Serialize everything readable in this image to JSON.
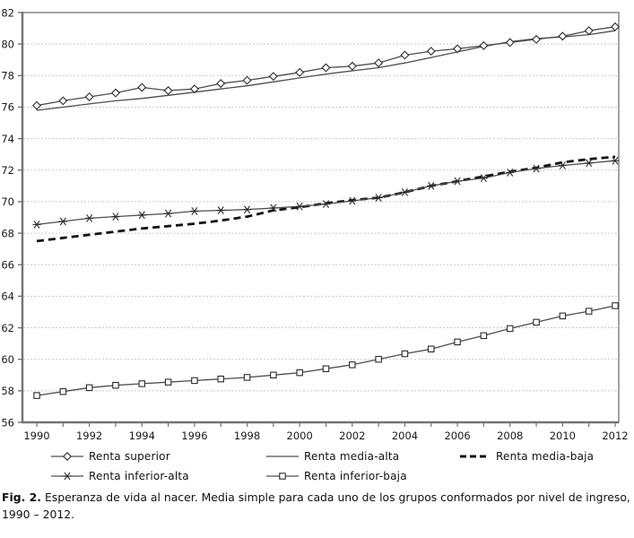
{
  "colors": {
    "axis": "#737373",
    "grid": "#c9c9c9",
    "line_gray": "#4d4d4d",
    "line_black": "#141414",
    "marker_stroke": "#2b2b2b",
    "marker_fill": "#ffffff",
    "text": "#1a1a1a"
  },
  "chart_data": {
    "type": "line",
    "title": "",
    "xlabel": "",
    "ylabel": "",
    "grid": "horizontal-dashed",
    "legend_position": "bottom",
    "ylim": [
      56,
      82
    ],
    "y_ticks": [
      56,
      58,
      60,
      62,
      64,
      66,
      68,
      70,
      72,
      74,
      76,
      78,
      80,
      82
    ],
    "x": [
      1990,
      1991,
      1992,
      1993,
      1994,
      1995,
      1996,
      1997,
      1998,
      1999,
      2000,
      2001,
      2002,
      2003,
      2004,
      2005,
      2006,
      2007,
      2008,
      2009,
      2010,
      2011,
      2012
    ],
    "x_tick_labels": [
      "1990",
      "1992",
      "1994",
      "1996",
      "1998",
      "2000",
      "2002",
      "2004",
      "2006",
      "2008",
      "2010",
      "2012"
    ],
    "series": [
      {
        "name": "Renta superior",
        "marker": "diamond",
        "line": "solid-thin",
        "values": [
          76.1,
          76.4,
          76.65,
          76.9,
          77.25,
          77.05,
          77.15,
          77.5,
          77.7,
          77.95,
          78.2,
          78.5,
          78.6,
          78.8,
          79.3,
          79.55,
          79.7,
          79.9,
          80.1,
          80.3,
          80.5,
          80.85,
          81.1
        ]
      },
      {
        "name": "Renta media-alta",
        "marker": "none",
        "line": "solid-thin",
        "values": [
          75.8,
          76.0,
          76.2,
          76.4,
          76.55,
          76.75,
          76.95,
          77.15,
          77.35,
          77.6,
          77.85,
          78.1,
          78.3,
          78.5,
          78.8,
          79.15,
          79.5,
          79.85,
          80.15,
          80.35,
          80.45,
          80.6,
          80.85
        ]
      },
      {
        "name": "Renta media-baja",
        "marker": "none",
        "line": "dashed-bold",
        "values": [
          67.5,
          67.7,
          67.9,
          68.1,
          68.3,
          68.45,
          68.6,
          68.8,
          69.05,
          69.45,
          69.65,
          69.9,
          70.1,
          70.25,
          70.6,
          71.0,
          71.3,
          71.6,
          71.9,
          72.15,
          72.5,
          72.7,
          72.85
        ]
      },
      {
        "name": "Renta inferior-alta",
        "marker": "star",
        "line": "solid-thin",
        "values": [
          68.55,
          68.75,
          68.95,
          69.05,
          69.15,
          69.25,
          69.4,
          69.45,
          69.5,
          69.6,
          69.7,
          69.85,
          70.05,
          70.25,
          70.6,
          71.0,
          71.3,
          71.5,
          71.85,
          72.1,
          72.3,
          72.45,
          72.6
        ]
      },
      {
        "name": "Renta inferior-baja",
        "marker": "square",
        "line": "solid-thin",
        "values": [
          57.7,
          57.95,
          58.2,
          58.35,
          58.45,
          58.55,
          58.65,
          58.75,
          58.85,
          59.0,
          59.15,
          59.4,
          59.65,
          60.0,
          60.35,
          60.65,
          61.1,
          61.5,
          61.95,
          62.35,
          62.75,
          63.05,
          63.4
        ]
      }
    ]
  },
  "caption": {
    "prefix": "Fig. 2.",
    "text": "Esperanza de vida al nacer. Media simple para cada uno de los grupos conformados por nivel de ingreso, 1990 – 2012."
  }
}
